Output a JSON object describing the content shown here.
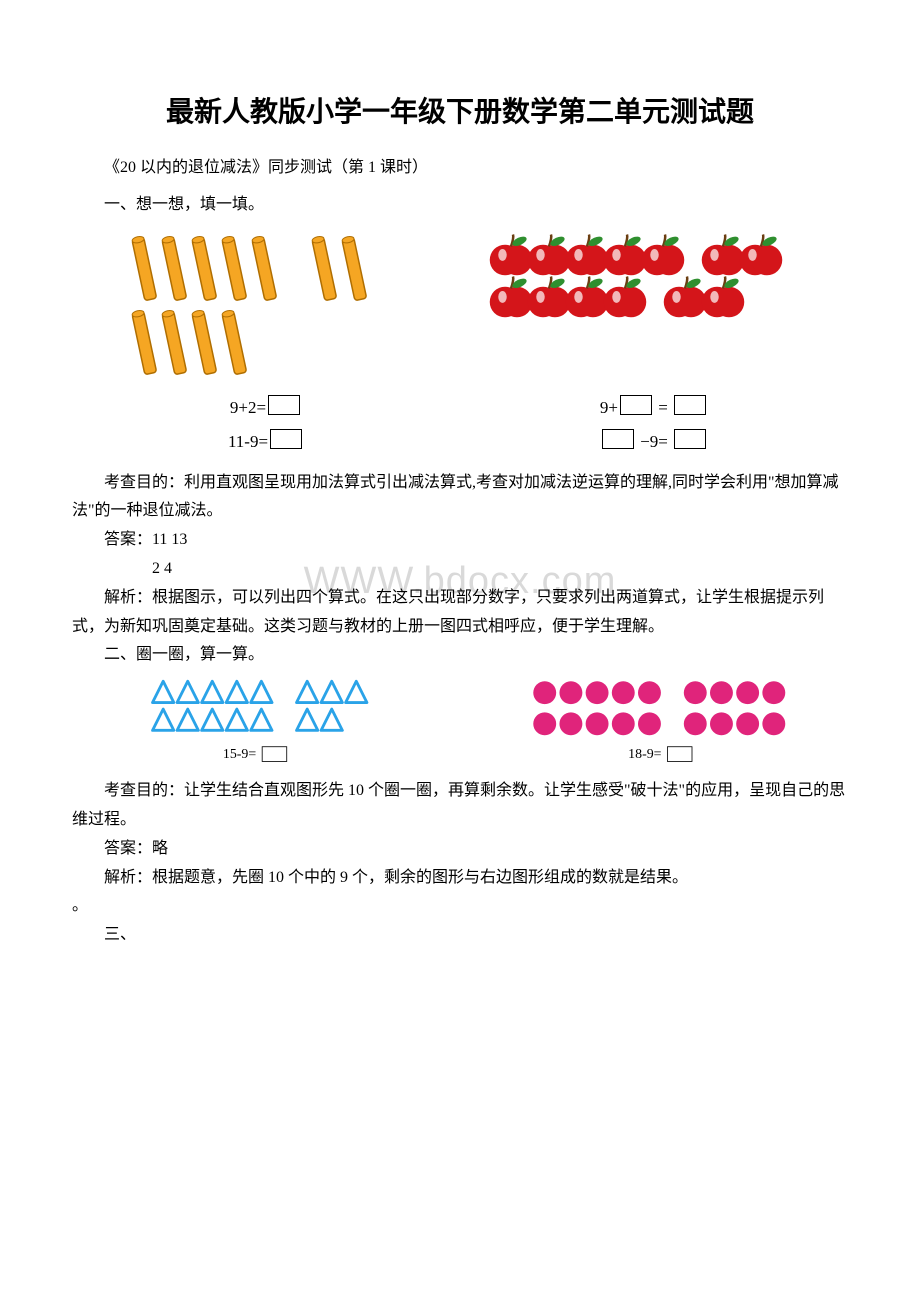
{
  "title": "最新人教版小学一年级下册数学第二单元测试题",
  "subtitle": "《20 以内的退位减法》同步测试（第 1 课时）",
  "section1": {
    "heading": "一、想一想，填一填。",
    "left_eq1_prefix": "9+2=",
    "left_eq2_prefix": "11-9=",
    "right_eq1_prefix": "9+",
    "right_eq1_mid": " = ",
    "right_eq2_mid": " −9= ",
    "purpose": "考查目的：利用直观图呈现用加法算式引出减法算式,考查对加减法逆运算的理解,同时学会利用\"想加算减法\"的一种退位减法。",
    "answer_label": "答案：",
    "answer_line1": "11 13",
    "answer_line2": "2   4",
    "analysis": "解析：根据图示，可以列出四个算式。在这只出现部分数字，只要求列出两道算式，让学生根据提示列式，为新知巩固奠定基础。这类习题与教材的上册一图四式相呼应，便于学生理解。",
    "sticks": {
      "color_fill": "#f5a623",
      "color_stroke": "#b06e00",
      "row1_groupA": 5,
      "row1_groupB": 2,
      "row2": 4,
      "width": 12,
      "height": 62,
      "gap": 6,
      "group_gap": 30,
      "tilt": -12
    },
    "apples": {
      "fill": "#d4151a",
      "leaf": "#2f8f2f",
      "stem": "#6b3e12",
      "shine": "#ffffff",
      "row1_groupA": 5,
      "row1_groupB": 2,
      "row2_groupA": 4,
      "row2_groupB": 2,
      "r": 17,
      "gap": 4,
      "group_gap": 22
    }
  },
  "section2": {
    "heading": "二、圈一圈，算一算。",
    "left_eq": "15-9=",
    "right_eq": "18-9=",
    "triangles": {
      "stroke": "#2aa3e8",
      "fill": "#ffffff",
      "row1_groupA": 5,
      "row1_groupB": 3,
      "row2_groupA": 5,
      "row2_groupB": 2,
      "size": 26,
      "gap": 4,
      "group_gap": 26
    },
    "circles": {
      "fill": "#e0247b",
      "row1_groupA": 5,
      "row1_groupB": 4,
      "row2_groupA": 5,
      "row2_groupB": 4,
      "r": 14,
      "gap": 4,
      "group_gap": 24
    },
    "purpose": "考查目的：让学生结合直观图形先 10 个圈一圈，再算剩余数。让学生感受\"破十法\"的应用，呈现自己的思维过程。",
    "answer": "答案：略",
    "analysis": "解析：根据题意，先圈 10 个中的 9 个，剩余的图形与右边图形组成的数就是结果。"
  },
  "section3_heading": "三、",
  "watermark": "WWW.bdocx.com"
}
